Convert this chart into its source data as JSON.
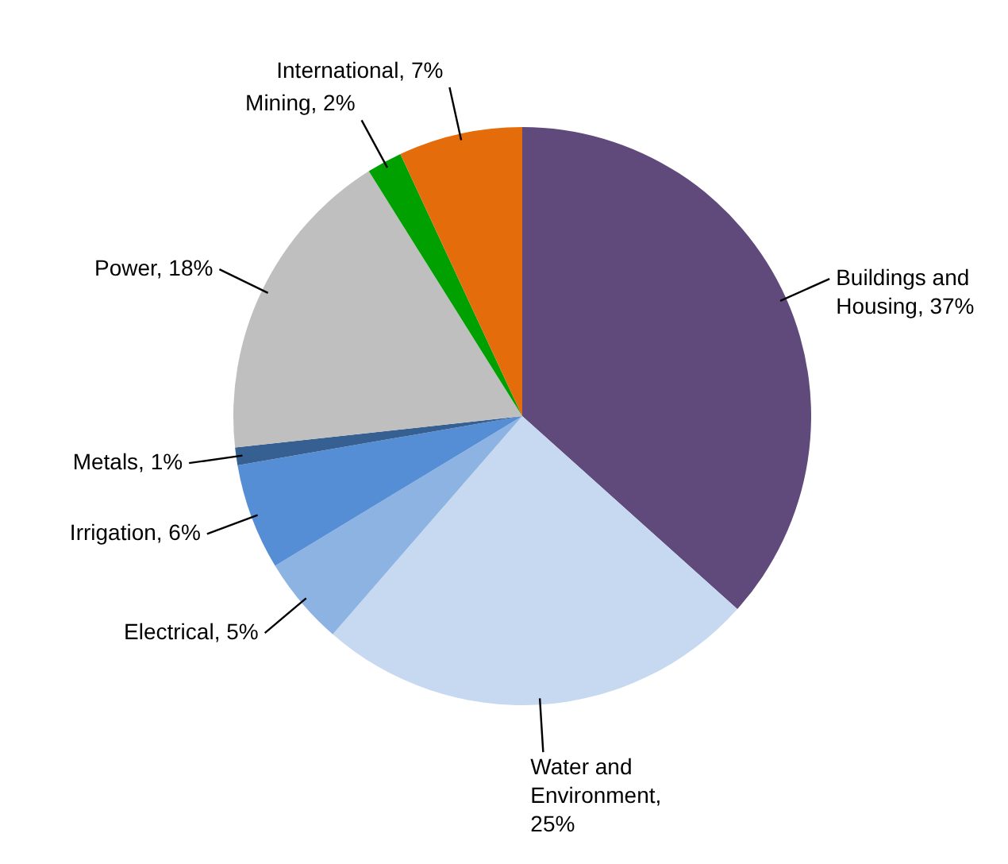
{
  "chart_data": {
    "type": "pie",
    "categories": [
      "Buildings and Housing",
      "Water and Environment",
      "Electrical",
      "Irrigation",
      "Metals",
      "Power",
      "Mining",
      "International"
    ],
    "values": [
      37,
      25,
      5,
      6,
      1,
      18,
      2,
      7
    ],
    "value_labels": [
      ", 37%",
      ", 25%",
      ", 5%",
      ", 6%",
      ", 1%",
      ", 18%",
      ", 2%",
      ", 7%"
    ],
    "colors": [
      "#604a7b",
      "#c6d9f1",
      "#8db3e2",
      "#558ed5",
      "#376092",
      "#bfbfbf",
      "#00a000",
      "#e46c0a"
    ]
  }
}
